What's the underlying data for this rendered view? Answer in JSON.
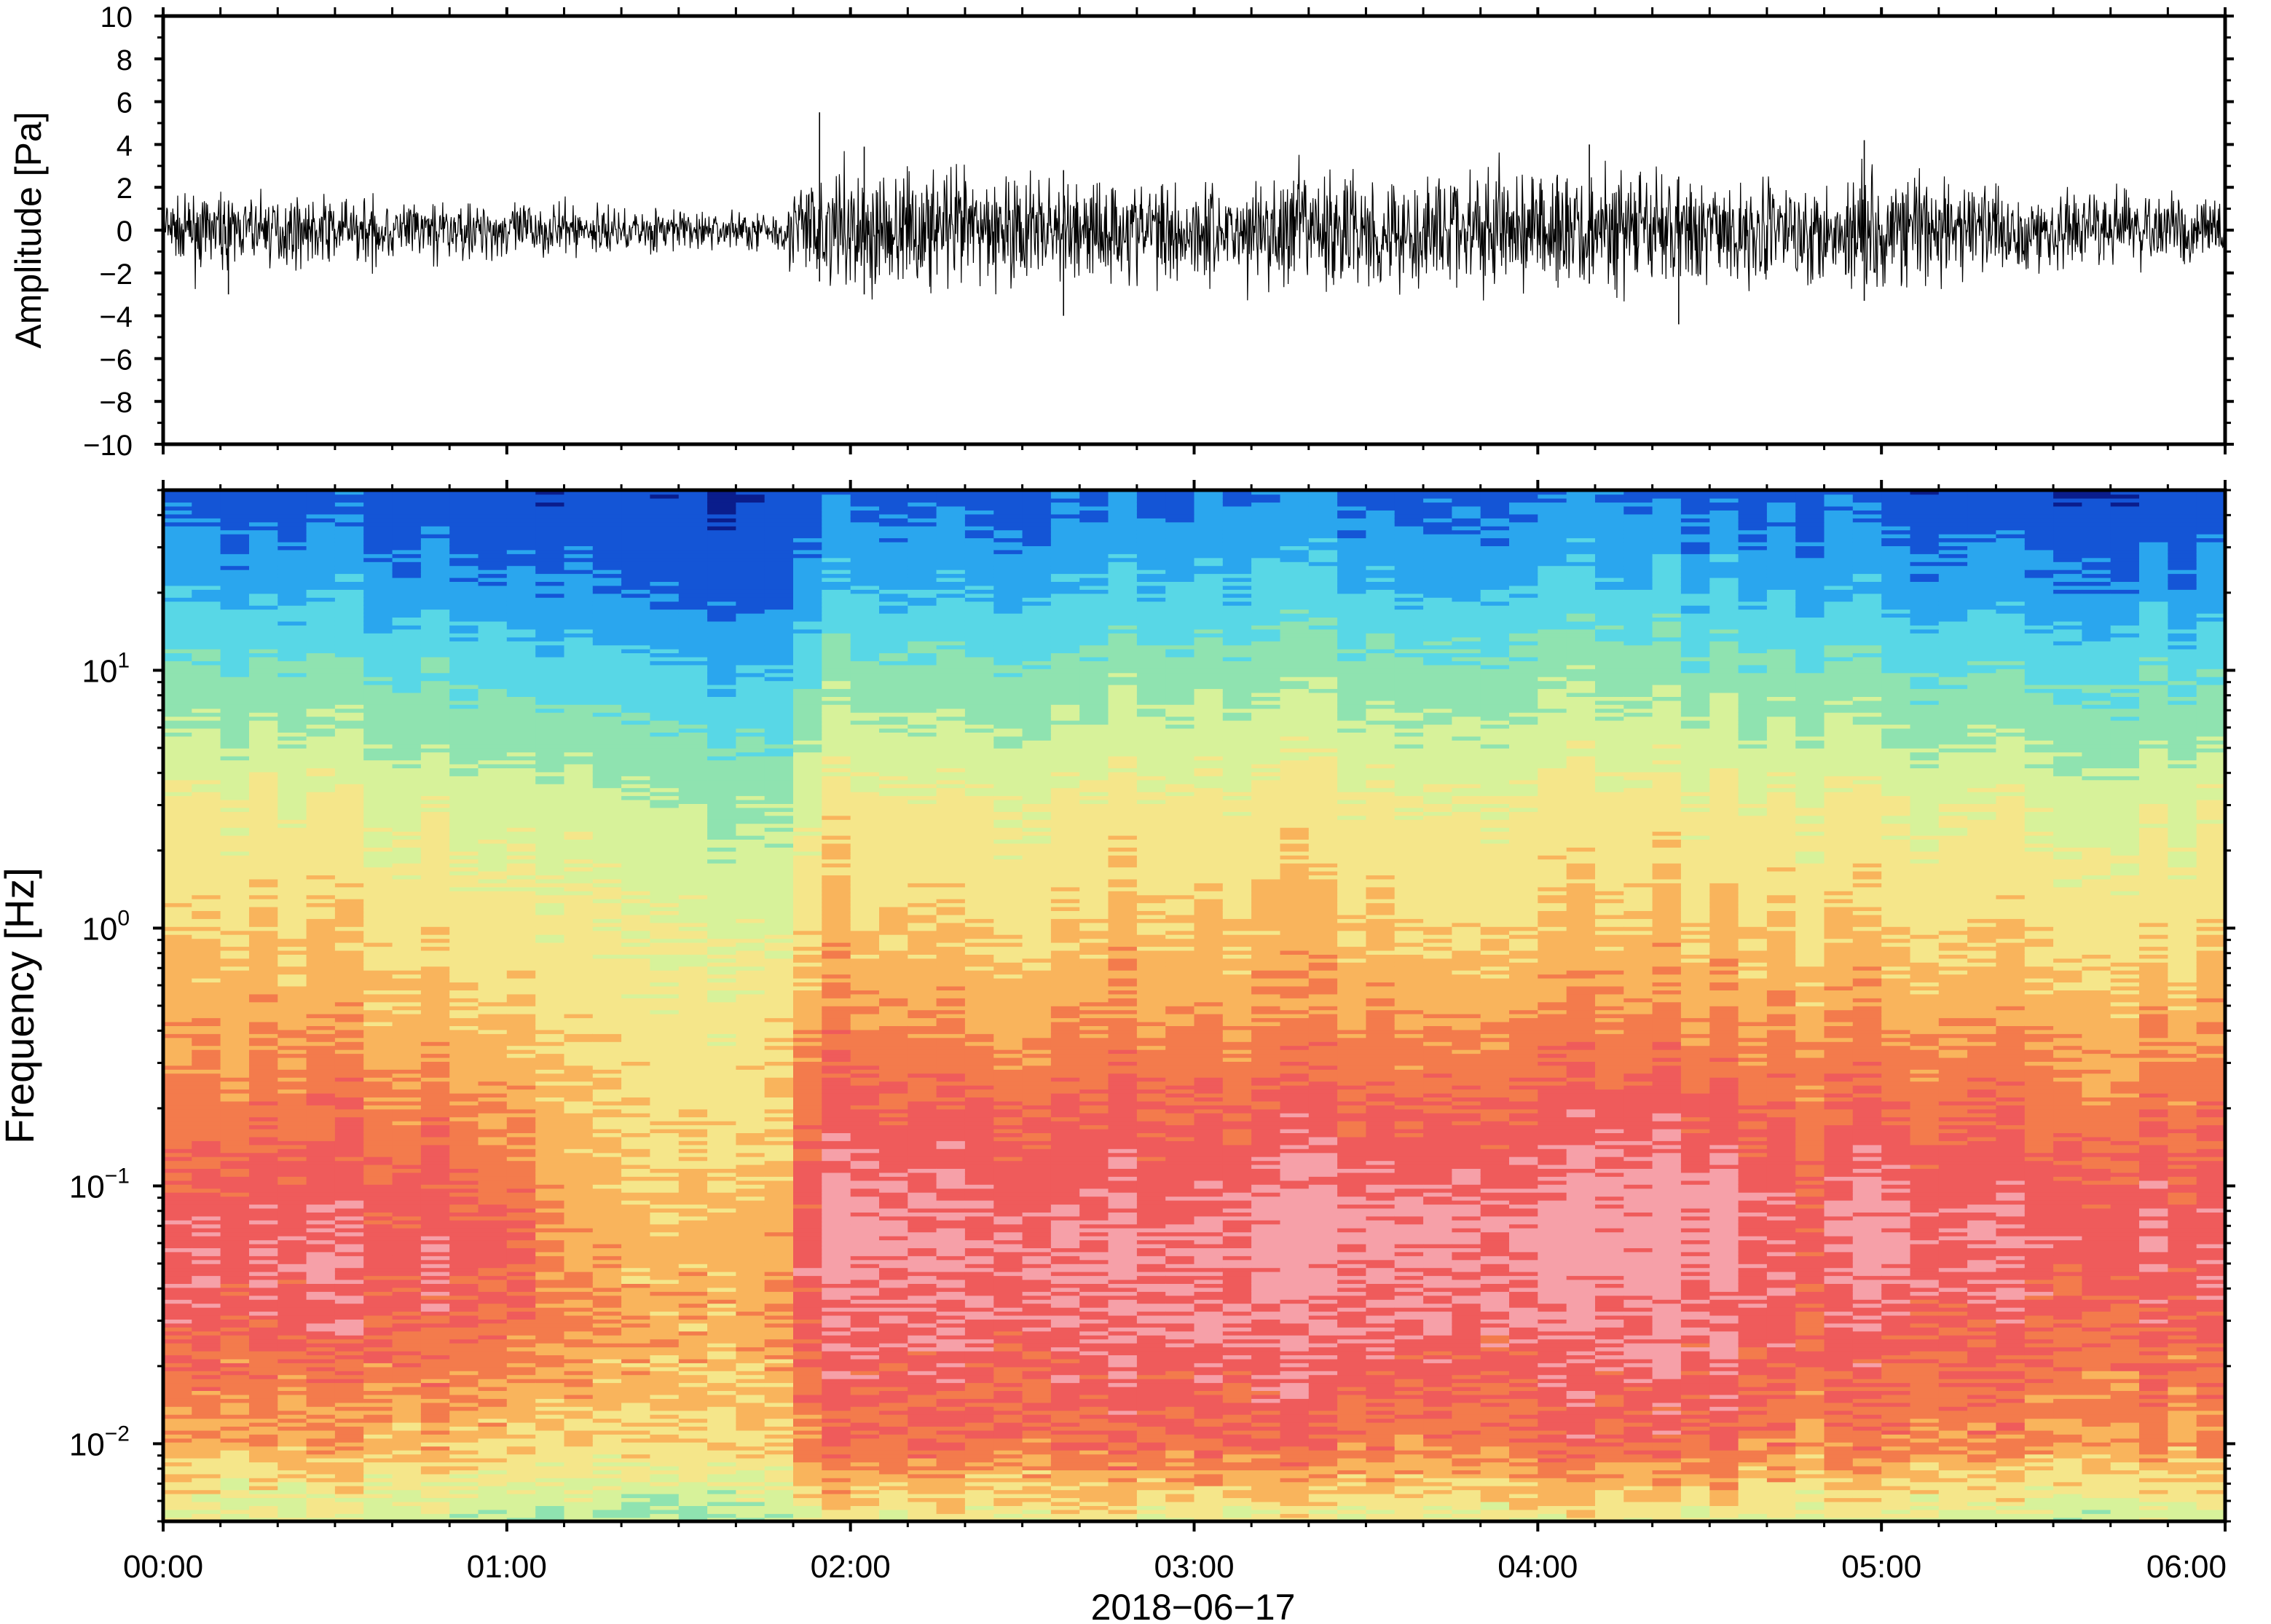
{
  "chart_data": [
    {
      "type": "line",
      "title": "",
      "ylabel": "Amplitude [Pa]",
      "ylim": [
        -10,
        10
      ],
      "yticks": [
        10,
        8,
        6,
        4,
        2,
        0,
        -2,
        -4,
        -6,
        -8,
        -10
      ],
      "ytick_labels": [
        "10",
        "8",
        "6",
        "4",
        "2",
        "0",
        "−2",
        "−4",
        "−6",
        "−8",
        "−10"
      ],
      "x_range": [
        "00:00",
        "06:00"
      ],
      "line_color": "#000000",
      "envelope": {
        "time_h": [
          0,
          0.5,
          1.0,
          1.5,
          1.8,
          1.85,
          2.0,
          2.5,
          3.0,
          3.5,
          4.0,
          4.5,
          5.0,
          5.5,
          6.0
        ],
        "typical_amplitude_pa": [
          1.2,
          1.3,
          1.1,
          0.8,
          0.8,
          2.2,
          2.4,
          2.2,
          2.0,
          2.4,
          2.4,
          2.0,
          2.3,
          1.6,
          1.2
        ]
      },
      "spikes": [
        {
          "time_h": 1.91,
          "max_pa": 5.5,
          "min_pa": -2.4
        },
        {
          "time_h": 2.04,
          "max_pa": 3.9,
          "min_pa": -3.0
        },
        {
          "time_h": 2.62,
          "max_pa": 2.8,
          "min_pa": -4.0
        },
        {
          "time_h": 4.15,
          "max_pa": 4.0,
          "min_pa": -2.5
        },
        {
          "time_h": 4.41,
          "max_pa": 2.5,
          "min_pa": -4.4
        },
        {
          "time_h": 4.95,
          "max_pa": 4.2,
          "min_pa": -3.3
        },
        {
          "time_h": 0.19,
          "max_pa": 1.2,
          "min_pa": -3.0
        }
      ]
    },
    {
      "type": "heatmap",
      "title": "",
      "ylabel": "Frequency [Hz]",
      "xlabel": "2018−06−17",
      "y_scale": "log",
      "ylim": [
        0.005,
        50
      ],
      "yticks": [
        0.01,
        0.1,
        1,
        10
      ],
      "ytick_labels": [
        {
          "base": "10",
          "exp": "−2"
        },
        {
          "base": "10",
          "exp": "−1"
        },
        {
          "base": "10",
          "exp": "0"
        },
        {
          "base": "10",
          "exp": "1"
        }
      ],
      "x_ticks_h": [
        0,
        1,
        2,
        3,
        4,
        5,
        6
      ],
      "xtick_labels": [
        "00:00",
        "01:00",
        "02:00",
        "03:00",
        "04:00",
        "05:00",
        "06:00"
      ],
      "colormap": [
        "#0a1d8c",
        "#1455d6",
        "#2aa6ee",
        "#58d7e6",
        "#8fe3b0",
        "#d7f29a",
        "#f5e68a",
        "#f9b45c",
        "#f37b4c",
        "#ef5b5b",
        "#f6a0a8"
      ],
      "time_columns_h": [
        0.0,
        0.5,
        1.0,
        1.2,
        1.45,
        1.8,
        1.9,
        2.5,
        3.0,
        3.5,
        4.0,
        4.5,
        4.8,
        5.0,
        5.5,
        6.0
      ],
      "power_profile_freqs_hz": [
        0.005,
        0.01,
        0.03,
        0.06,
        0.1,
        0.2,
        0.5,
        1,
        3,
        10,
        20,
        50
      ],
      "power_profile_levels": [
        [
          5.2,
          7.0,
          8.8,
          9.2,
          8.6,
          7.8,
          6.9,
          6.3,
          5.6,
          3.6,
          2.2,
          1.0
        ],
        [
          5.0,
          7.0,
          8.8,
          9.2,
          8.8,
          8.1,
          7.0,
          6.3,
          5.5,
          3.5,
          2.1,
          0.9
        ],
        [
          5.0,
          7.0,
          8.8,
          9.4,
          8.6,
          7.8,
          6.7,
          6.2,
          5.4,
          3.4,
          2.1,
          0.9
        ],
        [
          4.5,
          6.4,
          7.6,
          7.2,
          7.0,
          6.6,
          6.1,
          5.8,
          5.0,
          3.0,
          1.7,
          0.7
        ],
        [
          4.0,
          6.2,
          7.0,
          6.8,
          6.4,
          6.0,
          5.8,
          5.4,
          4.6,
          2.6,
          1.3,
          0.5
        ],
        [
          4.4,
          6.2,
          7.0,
          6.8,
          6.6,
          6.2,
          5.7,
          5.0,
          4.0,
          2.1,
          0.9,
          0.3
        ],
        [
          5.6,
          8.3,
          9.4,
          9.9,
          9.6,
          8.8,
          7.5,
          6.6,
          5.8,
          3.8,
          2.4,
          1.1
        ],
        [
          5.8,
          8.4,
          9.5,
          9.8,
          9.4,
          8.7,
          7.4,
          6.6,
          5.8,
          3.9,
          2.6,
          1.2
        ],
        [
          5.6,
          8.4,
          9.5,
          9.6,
          9.2,
          8.6,
          7.3,
          6.6,
          5.8,
          4.0,
          2.7,
          1.3
        ],
        [
          5.4,
          8.2,
          9.6,
          10.0,
          9.6,
          8.8,
          7.4,
          6.7,
          5.9,
          4.1,
          2.8,
          1.4
        ],
        [
          5.6,
          8.4,
          9.5,
          9.9,
          9.6,
          8.8,
          7.4,
          6.6,
          5.8,
          4.0,
          2.7,
          1.3
        ],
        [
          5.6,
          8.5,
          9.6,
          10.0,
          9.8,
          8.9,
          7.4,
          6.6,
          5.8,
          3.9,
          2.6,
          1.2
        ],
        [
          5.2,
          7.6,
          8.8,
          9.0,
          8.7,
          8.1,
          7.1,
          6.4,
          5.6,
          3.6,
          2.3,
          1.0
        ],
        [
          5.4,
          8.0,
          9.2,
          9.8,
          9.5,
          8.6,
          7.3,
          6.5,
          5.6,
          3.6,
          2.2,
          1.0
        ],
        [
          5.0,
          7.6,
          8.8,
          9.4,
          9.1,
          8.3,
          7.1,
          6.3,
          5.4,
          3.4,
          2.0,
          0.8
        ],
        [
          5.0,
          7.4,
          8.7,
          9.2,
          8.9,
          8.1,
          7.0,
          6.2,
          5.3,
          3.3,
          1.9,
          0.7
        ]
      ]
    }
  ]
}
